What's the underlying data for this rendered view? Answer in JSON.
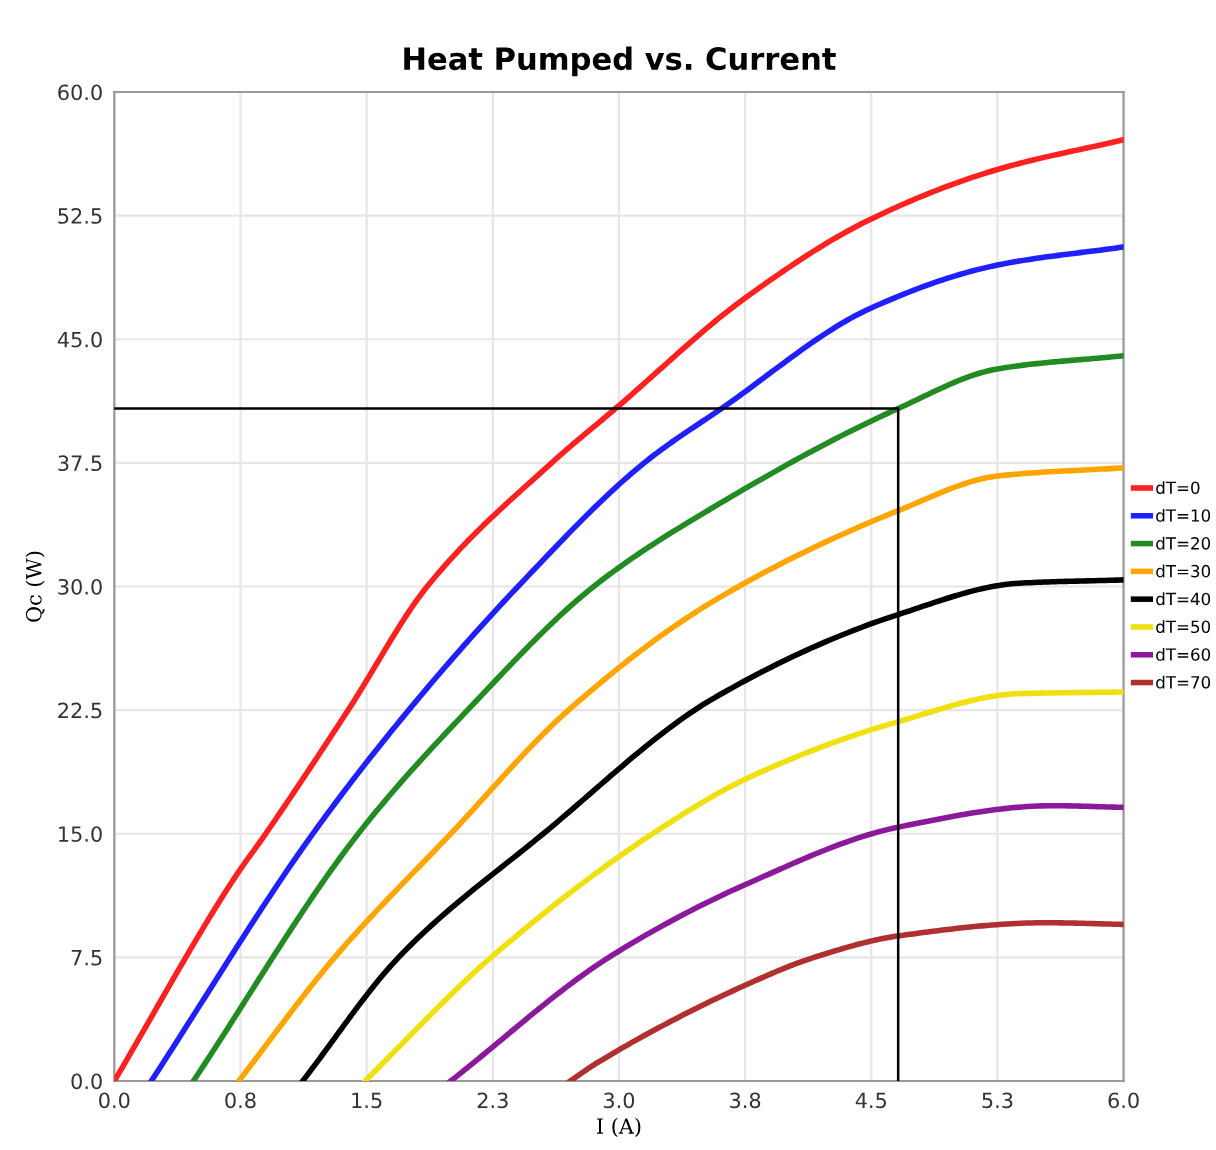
{
  "chart_data": {
    "type": "line",
    "title": "Heat Pumped vs. Current",
    "xlabel": "I (A)",
    "ylabel": "Qc (W)",
    "xlim": [
      0,
      6
    ],
    "ylim": [
      0,
      60
    ],
    "xticks": [
      {
        "value": 0,
        "label": "0.0"
      },
      {
        "value": 0.75,
        "label": "0.8"
      },
      {
        "value": 1.5,
        "label": "1.5"
      },
      {
        "value": 2.25,
        "label": "2.3"
      },
      {
        "value": 3,
        "label": "3.0"
      },
      {
        "value": 3.75,
        "label": "3.8"
      },
      {
        "value": 4.5,
        "label": "4.5"
      },
      {
        "value": 5.25,
        "label": "5.3"
      },
      {
        "value": 6,
        "label": "6.0"
      }
    ],
    "yticks": [
      {
        "value": 0,
        "label": "0.0"
      },
      {
        "value": 7.5,
        "label": "7.5"
      },
      {
        "value": 15,
        "label": "15.0"
      },
      {
        "value": 22.5,
        "label": "22.5"
      },
      {
        "value": 30,
        "label": "30.0"
      },
      {
        "value": 37.5,
        "label": "37.5"
      },
      {
        "value": 45,
        "label": "45.0"
      },
      {
        "value": 52.5,
        "label": "52.5"
      },
      {
        "value": 60,
        "label": "60.0"
      }
    ],
    "grid": true,
    "legend": "right",
    "marker": "none",
    "line_style": "solid",
    "series": [
      {
        "name": "dT=0",
        "color": "#ff2020",
        "x": [
          0,
          0.72,
          0.9,
          1.39,
          1.86,
          2.6,
          2.98,
          3.75,
          4.5,
          5.25,
          6
        ],
        "values": [
          0,
          12.4,
          15,
          22.5,
          30,
          37.5,
          40.8,
          47.5,
          52.3,
          55.3,
          57.1
        ]
      },
      {
        "name": "dT=10",
        "color": "#2020ff",
        "x": [
          0.22,
          1.18,
          1.75,
          2.4,
          3.15,
          3.61,
          4.5,
          5.25,
          6
        ],
        "values": [
          0,
          15,
          22.5,
          30,
          37.5,
          40.8,
          46.9,
          49.5,
          50.6
        ]
      },
      {
        "name": "dT=20",
        "color": "#228b22",
        "x": [
          0.47,
          1.45,
          2.1,
          2.85,
          3.56,
          4.66,
          5.25,
          6
        ],
        "values": [
          0,
          15,
          22.5,
          30,
          34.8,
          40.8,
          43.2,
          44.0
        ]
      },
      {
        "name": "dT=30",
        "color": "#ffa500",
        "x": [
          0.74,
          1.31,
          2.0,
          2.7,
          3.56,
          4.66,
          5.25,
          6
        ],
        "values": [
          0,
          7.5,
          15,
          22.5,
          29.1,
          34.6,
          36.7,
          37.2
        ]
      },
      {
        "name": "dT=40",
        "color": "#000000",
        "x": [
          1.12,
          1.69,
          2.55,
          3.56,
          4.66,
          5.38,
          6
        ],
        "values": [
          0,
          7.5,
          15,
          23.2,
          28.3,
          30.2,
          30.4
        ]
      },
      {
        "name": "dT=50",
        "color": "#f0e010",
        "x": [
          1.49,
          2.24,
          3.2,
          3.77,
          4.66,
          5.38,
          6
        ],
        "values": [
          0,
          7.5,
          15,
          18.4,
          21.8,
          23.5,
          23.6
        ]
      },
      {
        "name": "dT=60",
        "color": "#8b1a9b",
        "x": [
          2.0,
          2.94,
          3.77,
          4.66,
          5.58,
          6
        ],
        "values": [
          0,
          7.5,
          12.0,
          15.4,
          16.7,
          16.6
        ]
      },
      {
        "name": "dT=70",
        "color": "#b03030",
        "x": [
          2.71,
          2.87,
          3.77,
          4.16,
          4.66,
          5.54,
          6
        ],
        "values": [
          0,
          1.1,
          5.9,
          7.5,
          8.8,
          9.6,
          9.5
        ]
      },
      {
        "color": "#000000",
        "x": [
          0,
          4.66,
          4.66
        ],
        "values": [
          40.8,
          40.8,
          0
        ]
      }
    ]
  }
}
